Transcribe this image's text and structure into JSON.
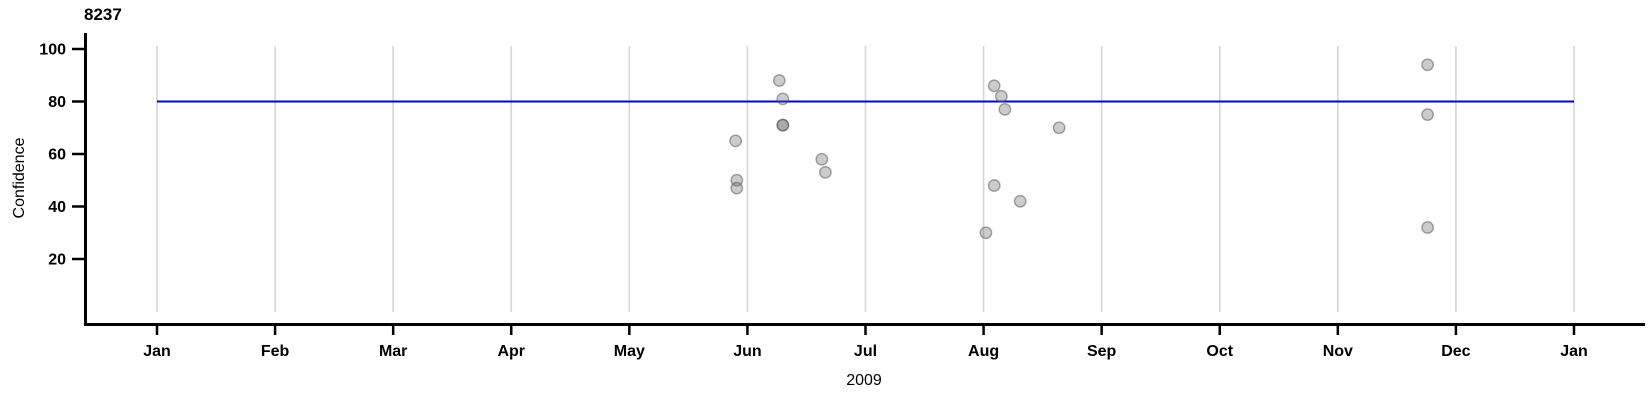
{
  "chart_data": {
    "type": "scatter",
    "title": "8237",
    "ylabel": "Confidence",
    "xlabel": "2009",
    "x_tick_labels": [
      "Jan",
      "Feb",
      "Mar",
      "Apr",
      "May",
      "Jun",
      "Jul",
      "Aug",
      "Sep",
      "Oct",
      "Nov",
      "Dec",
      "Jan"
    ],
    "y_ticks": [
      20,
      40,
      60,
      80,
      100
    ],
    "xlim_months": [
      0,
      12
    ],
    "ylim": [
      0,
      101
    ],
    "grid": "vertical-month-gridlines",
    "legend": "none",
    "reference_line": {
      "y": 80
    },
    "points": [
      {
        "month": 4.9,
        "confidence": 65
      },
      {
        "month": 4.91,
        "confidence": 50
      },
      {
        "month": 4.91,
        "confidence": 47
      },
      {
        "month": 5.27,
        "confidence": 88
      },
      {
        "month": 5.3,
        "confidence": 81
      },
      {
        "month": 5.3,
        "confidence": 71
      },
      {
        "month": 5.3,
        "confidence": 71
      },
      {
        "month": 5.63,
        "confidence": 58
      },
      {
        "month": 5.66,
        "confidence": 53
      },
      {
        "month": 7.02,
        "confidence": 30
      },
      {
        "month": 7.09,
        "confidence": 86
      },
      {
        "month": 7.09,
        "confidence": 48
      },
      {
        "month": 7.15,
        "confidence": 82
      },
      {
        "month": 7.18,
        "confidence": 77
      },
      {
        "month": 7.31,
        "confidence": 42
      },
      {
        "month": 7.64,
        "confidence": 70
      },
      {
        "month": 10.76,
        "confidence": 94
      },
      {
        "month": 10.76,
        "confidence": 75
      },
      {
        "month": 10.76,
        "confidence": 32
      }
    ],
    "colors": {
      "point_fill": "rgba(100,100,100,0.33)",
      "point_stroke": "rgba(80,80,80,0.5)",
      "gridline": "#d6d6d6",
      "axis": "#000000",
      "reference_line": "#0000cc",
      "text": "#000000"
    }
  }
}
